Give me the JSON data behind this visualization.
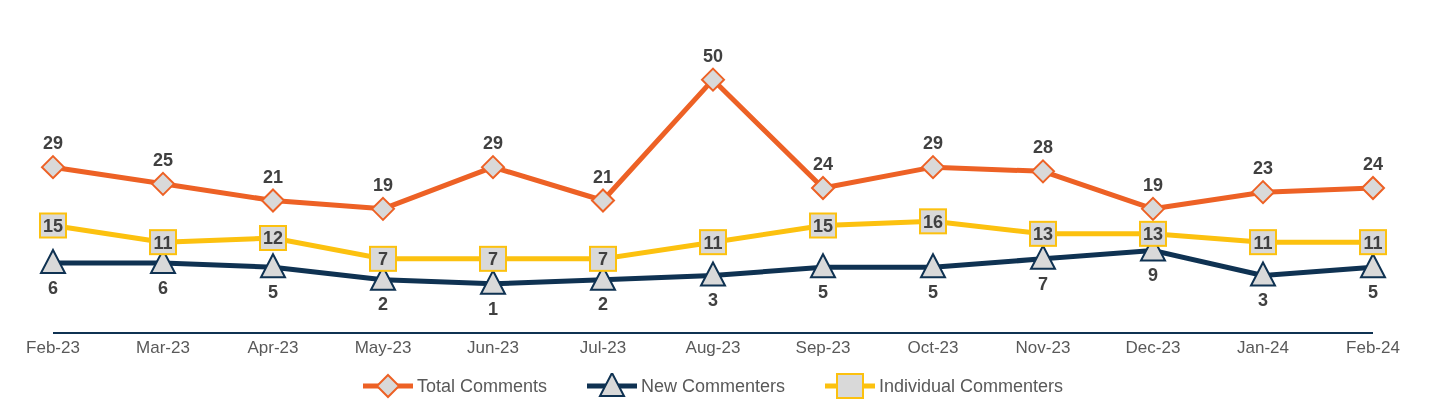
{
  "chart_data": {
    "type": "line",
    "categories": [
      "Feb-23",
      "Mar-23",
      "Apr-23",
      "May-23",
      "Jun-23",
      "Jul-23",
      "Aug-23",
      "Sep-23",
      "Oct-23",
      "Nov-23",
      "Dec-23",
      "Jan-24",
      "Feb-24"
    ],
    "series": [
      {
        "name": "Total Comments",
        "color": "#ed6125",
        "marker": "diamond",
        "values": [
          29,
          25,
          21,
          19,
          29,
          21,
          50,
          24,
          29,
          28,
          19,
          23,
          24
        ]
      },
      {
        "name": "New Commenters",
        "color": "#0f3252",
        "marker": "triangle",
        "values": [
          6,
          6,
          5,
          2,
          1,
          2,
          3,
          5,
          5,
          7,
          9,
          3,
          5
        ]
      },
      {
        "name": "Individual Commenters",
        "color": "#fcc10f",
        "marker": "square",
        "values": [
          15,
          11,
          12,
          7,
          7,
          7,
          11,
          15,
          16,
          13,
          13,
          11,
          11
        ]
      }
    ],
    "data_labels": true,
    "legend": "bottom"
  }
}
